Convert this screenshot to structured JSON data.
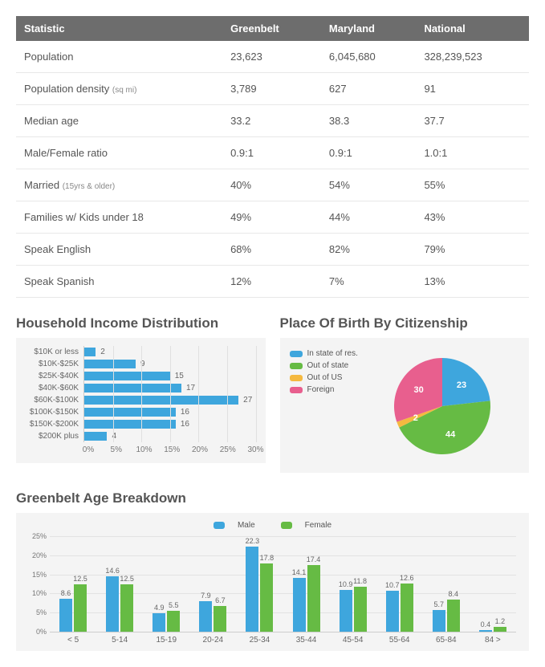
{
  "stats_table": {
    "columns": [
      "Statistic",
      "Greenbelt",
      "Maryland",
      "National"
    ],
    "header_bg": "#6d6d6d",
    "header_color": "#ffffff",
    "row_border": "#e8e8e8",
    "rows": [
      {
        "label": "Population",
        "sub": "",
        "greenbelt": "23,623",
        "maryland": "6,045,680",
        "national": "328,239,523"
      },
      {
        "label": "Population density",
        "sub": "(sq mi)",
        "greenbelt": "3,789",
        "maryland": "627",
        "national": "91"
      },
      {
        "label": "Median age",
        "sub": "",
        "greenbelt": "33.2",
        "maryland": "38.3",
        "national": "37.7"
      },
      {
        "label": "Male/Female ratio",
        "sub": "",
        "greenbelt": "0.9:1",
        "maryland": "0.9:1",
        "national": "1.0:1"
      },
      {
        "label": "Married",
        "sub": "(15yrs & older)",
        "greenbelt": "40%",
        "maryland": "54%",
        "national": "55%"
      },
      {
        "label": "Families w/ Kids under 18",
        "sub": "",
        "greenbelt": "49%",
        "maryland": "44%",
        "national": "43%"
      },
      {
        "label": "Speak English",
        "sub": "",
        "greenbelt": "68%",
        "maryland": "82%",
        "national": "79%"
      },
      {
        "label": "Speak Spanish",
        "sub": "",
        "greenbelt": "12%",
        "maryland": "7%",
        "national": "13%"
      }
    ]
  },
  "income_chart": {
    "title": "Household Income Distribution",
    "type": "horizontal_bar",
    "bar_color": "#3ea6dd",
    "grid_color": "#e0e0e0",
    "label_color": "#666666",
    "background": "#f4f4f4",
    "xmax": 30,
    "xtick_step": 5,
    "xticks": [
      "0%",
      "5%",
      "10%",
      "15%",
      "20%",
      "25%",
      "30%"
    ],
    "categories": [
      "$10K or less",
      "$10K-$25K",
      "$25K-$40K",
      "$40K-$60K",
      "$60K-$100K",
      "$100K-$150K",
      "$150K-$200K",
      "$200K plus"
    ],
    "values": [
      2,
      9,
      15,
      17,
      27,
      16,
      16,
      4
    ]
  },
  "birth_chart": {
    "title": "Place Of Birth By Citizenship",
    "type": "pie",
    "background": "#f4f4f4",
    "slices": [
      {
        "label": "In state of res.",
        "value": 23,
        "color": "#3ea6dd"
      },
      {
        "label": "Out of state",
        "value": 44,
        "color": "#66bb44"
      },
      {
        "label": "Out of US",
        "value": 2,
        "color": "#f5b940"
      },
      {
        "label": "Foreign",
        "value": 30,
        "color": "#e85f8e"
      }
    ]
  },
  "age_chart": {
    "title": "Greenbelt Age Breakdown",
    "type": "grouped_bar",
    "background": "#f4f4f4",
    "series": [
      {
        "name": "Male",
        "color": "#3ea6dd"
      },
      {
        "name": "Female",
        "color": "#66bb44"
      }
    ],
    "ymax": 25,
    "ytick_step": 5,
    "yticks": [
      "0%",
      "5%",
      "10%",
      "15%",
      "20%",
      "25%"
    ],
    "categories": [
      "< 5",
      "5-14",
      "15-19",
      "20-24",
      "25-34",
      "35-44",
      "45-54",
      "55-64",
      "65-84",
      "84 >"
    ],
    "male": [
      8.6,
      14.6,
      4.9,
      7.9,
      22.3,
      14.1,
      10.9,
      10.7,
      5.7,
      0.4
    ],
    "female": [
      12.5,
      12.5,
      5.5,
      6.7,
      17.8,
      17.4,
      11.8,
      12.6,
      8.4,
      1.2
    ]
  }
}
